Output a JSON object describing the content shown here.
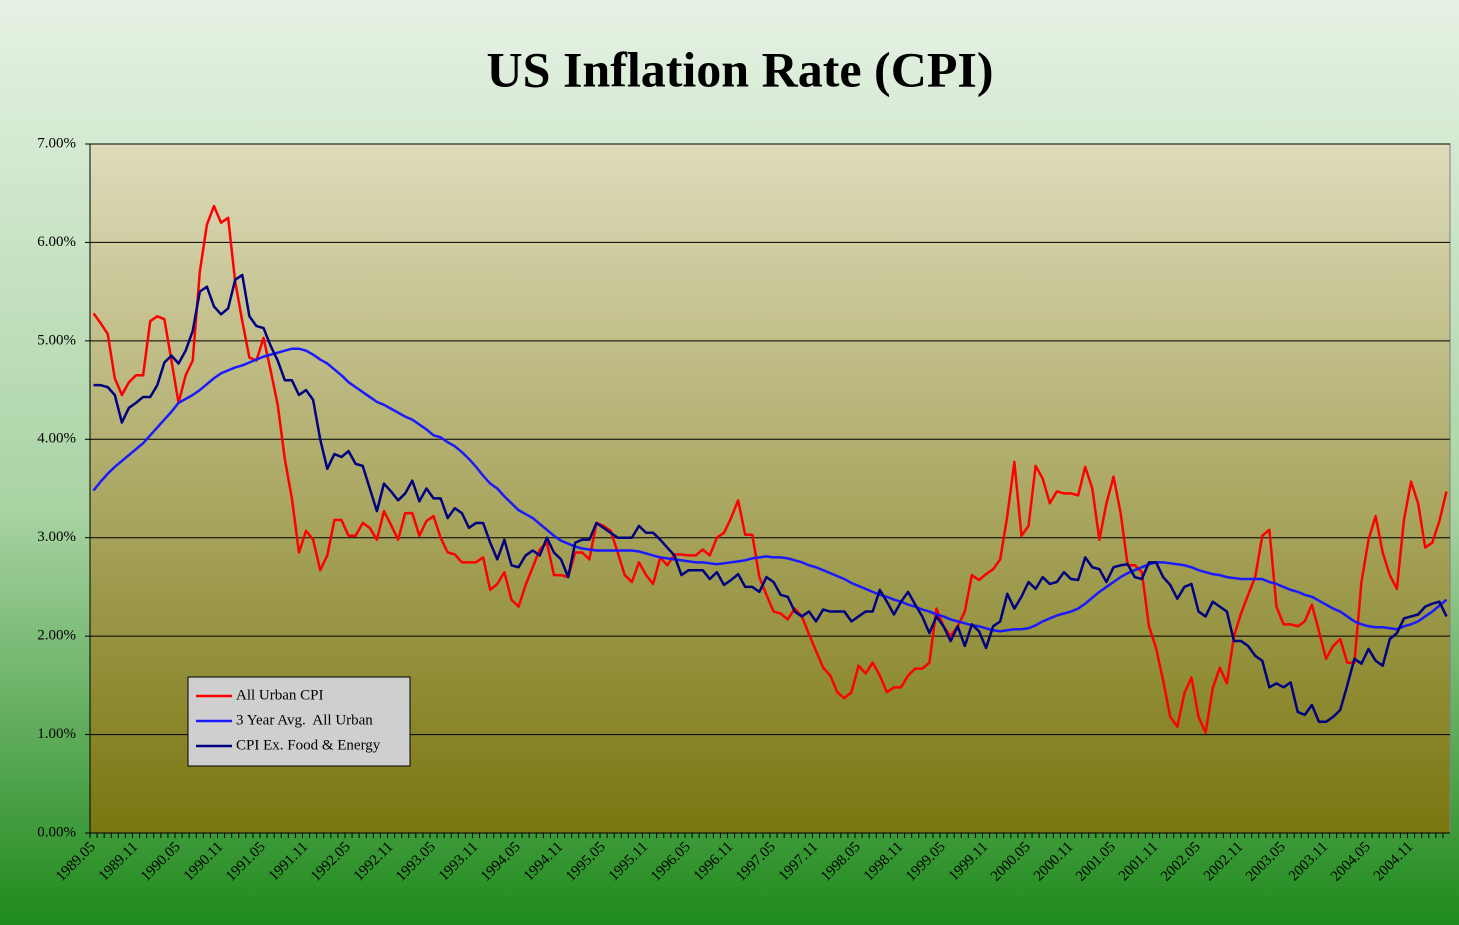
{
  "chart_data": {
    "type": "line",
    "title": "US Inflation Rate (CPI)",
    "categories": [
      "1989.05",
      null,
      null,
      null,
      null,
      null,
      "1989.11",
      null,
      null,
      null,
      null,
      null,
      "1990.05",
      null,
      null,
      null,
      null,
      null,
      "1990.11",
      null,
      null,
      null,
      null,
      null,
      "1991.05",
      null,
      null,
      null,
      null,
      null,
      "1991.11",
      null,
      null,
      null,
      null,
      null,
      "1992.05",
      null,
      null,
      null,
      null,
      null,
      "1992.11",
      null,
      null,
      null,
      null,
      null,
      "1993.05",
      null,
      null,
      null,
      null,
      null,
      "1993.11",
      null,
      null,
      null,
      null,
      null,
      "1994.05",
      null,
      null,
      null,
      null,
      null,
      "1994.11",
      null,
      null,
      null,
      null,
      null,
      "1995.05",
      null,
      null,
      null,
      null,
      null,
      "1995.11",
      null,
      null,
      null,
      null,
      null,
      "1996.05",
      null,
      null,
      null,
      null,
      null,
      "1996.11",
      null,
      null,
      null,
      null,
      null,
      "1997.05",
      null,
      null,
      null,
      null,
      null,
      "1997.11",
      null,
      null,
      null,
      null,
      null,
      "1998.05",
      null,
      null,
      null,
      null,
      null,
      "1998.11",
      null,
      null,
      null,
      null,
      null,
      "1999.05",
      null,
      null,
      null,
      null,
      null,
      "1999.11",
      null,
      null,
      null,
      null,
      null,
      "2000.05",
      null,
      null,
      null,
      null,
      null,
      "2000.11",
      null,
      null,
      null,
      null,
      null,
      "2001.05",
      null,
      null,
      null,
      null,
      null,
      "2001.11",
      null,
      null,
      null,
      null,
      null,
      "2002.05",
      null,
      null,
      null,
      null,
      null,
      "2002.11",
      null,
      null,
      null,
      null,
      null,
      "2003.05",
      null,
      null,
      null,
      null,
      null,
      "2003.11",
      null,
      null,
      null,
      null,
      null,
      "2004.05",
      null,
      null,
      null,
      null,
      null,
      "2004.11",
      null,
      null,
      null,
      null,
      null
    ],
    "series": [
      {
        "name": "All Urban CPI",
        "color": "#ff0000",
        "values": [
          5.28,
          5.18,
          5.07,
          4.62,
          4.45,
          4.58,
          4.65,
          4.65,
          5.2,
          5.25,
          5.22,
          4.8,
          4.37,
          4.65,
          4.8,
          5.7,
          6.18,
          6.37,
          6.2,
          6.25,
          5.6,
          5.2,
          4.83,
          4.8,
          5.03,
          4.7,
          4.35,
          3.8,
          3.4,
          2.85,
          3.07,
          2.98,
          2.67,
          2.82,
          3.18,
          3.18,
          3.02,
          3.02,
          3.15,
          3.1,
          2.98,
          3.27,
          3.13,
          2.98,
          3.25,
          3.25,
          3.02,
          3.17,
          3.22,
          3.0,
          2.85,
          2.83,
          2.75,
          2.75,
          2.75,
          2.8,
          2.47,
          2.53,
          2.65,
          2.37,
          2.3,
          2.52,
          2.7,
          2.88,
          2.95,
          2.62,
          2.62,
          2.6,
          2.85,
          2.85,
          2.78,
          3.15,
          3.12,
          3.07,
          2.85,
          2.62,
          2.55,
          2.75,
          2.62,
          2.53,
          2.8,
          2.72,
          2.83,
          2.83,
          2.82,
          2.82,
          2.88,
          2.82,
          3.0,
          3.05,
          3.2,
          3.38,
          3.03,
          3.03,
          2.6,
          2.42,
          2.25,
          2.23,
          2.17,
          2.28,
          2.2,
          2.02,
          1.85,
          1.68,
          1.6,
          1.43,
          1.37,
          1.43,
          1.7,
          1.62,
          1.73,
          1.6,
          1.43,
          1.48,
          1.48,
          1.6,
          1.67,
          1.67,
          1.73,
          2.28,
          2.1,
          2.0,
          2.1,
          2.25,
          2.62,
          2.57,
          2.63,
          2.68,
          2.78,
          3.22,
          3.77,
          3.02,
          3.12,
          3.73,
          3.6,
          3.35,
          3.47,
          3.45,
          3.45,
          3.43,
          3.72,
          3.5,
          2.98,
          3.35,
          3.62,
          3.25,
          2.72,
          2.72,
          2.65,
          2.1,
          1.88,
          1.55,
          1.18,
          1.08,
          1.42,
          1.58,
          1.18,
          1.02,
          1.47,
          1.68,
          1.52,
          2.0,
          2.23,
          2.42,
          2.6,
          3.02,
          3.08,
          2.3,
          2.12,
          2.12,
          2.1,
          2.15,
          2.32,
          2.05,
          1.77,
          1.9,
          1.97,
          1.73,
          1.73,
          2.55,
          2.98,
          3.22,
          2.85,
          2.62,
          2.48,
          3.18,
          3.57,
          3.35,
          2.9,
          2.95,
          3.17,
          3.47
        ]
      },
      {
        "name": "3 Year Avg.  All Urban",
        "color": "#1a1aff",
        "values": [
          3.48,
          3.57,
          3.65,
          3.72,
          3.78,
          3.84,
          3.9,
          3.96,
          4.04,
          4.12,
          4.2,
          4.28,
          4.37,
          4.41,
          4.45,
          4.5,
          4.56,
          4.62,
          4.67,
          4.7,
          4.73,
          4.75,
          4.78,
          4.81,
          4.84,
          4.86,
          4.88,
          4.9,
          4.92,
          4.92,
          4.9,
          4.86,
          4.81,
          4.77,
          4.71,
          4.65,
          4.58,
          4.53,
          4.48,
          4.43,
          4.38,
          4.35,
          4.31,
          4.27,
          4.23,
          4.2,
          4.15,
          4.1,
          4.04,
          4.02,
          3.97,
          3.93,
          3.87,
          3.8,
          3.72,
          3.63,
          3.55,
          3.5,
          3.42,
          3.35,
          3.28,
          3.24,
          3.2,
          3.14,
          3.08,
          3.02,
          2.97,
          2.94,
          2.91,
          2.89,
          2.88,
          2.87,
          2.87,
          2.87,
          2.87,
          2.87,
          2.87,
          2.86,
          2.84,
          2.82,
          2.8,
          2.79,
          2.78,
          2.77,
          2.76,
          2.75,
          2.75,
          2.74,
          2.73,
          2.74,
          2.75,
          2.76,
          2.77,
          2.79,
          2.8,
          2.81,
          2.8,
          2.8,
          2.79,
          2.77,
          2.75,
          2.72,
          2.7,
          2.67,
          2.64,
          2.61,
          2.58,
          2.54,
          2.51,
          2.48,
          2.45,
          2.42,
          2.4,
          2.37,
          2.35,
          2.32,
          2.3,
          2.27,
          2.25,
          2.22,
          2.2,
          2.17,
          2.15,
          2.13,
          2.11,
          2.1,
          2.08,
          2.06,
          2.05,
          2.06,
          2.07,
          2.07,
          2.08,
          2.11,
          2.15,
          2.18,
          2.21,
          2.23,
          2.25,
          2.28,
          2.33,
          2.39,
          2.45,
          2.5,
          2.55,
          2.6,
          2.64,
          2.67,
          2.7,
          2.73,
          2.75,
          2.75,
          2.74,
          2.73,
          2.72,
          2.7,
          2.67,
          2.65,
          2.63,
          2.62,
          2.6,
          2.59,
          2.58,
          2.58,
          2.58,
          2.58,
          2.55,
          2.53,
          2.5,
          2.47,
          2.45,
          2.42,
          2.4,
          2.36,
          2.32,
          2.28,
          2.25,
          2.2,
          2.15,
          2.12,
          2.1,
          2.09,
          2.09,
          2.08,
          2.07,
          2.1,
          2.12,
          2.15,
          2.2,
          2.25,
          2.31,
          2.37
        ]
      },
      {
        "name": "CPI Ex. Food & Energy",
        "color": "#000080",
        "values": [
          4.55,
          4.55,
          4.53,
          4.45,
          4.17,
          4.32,
          4.37,
          4.43,
          4.43,
          4.55,
          4.78,
          4.85,
          4.77,
          4.9,
          5.1,
          5.5,
          5.55,
          5.35,
          5.27,
          5.33,
          5.62,
          5.67,
          5.25,
          5.15,
          5.13,
          4.95,
          4.8,
          4.6,
          4.6,
          4.45,
          4.5,
          4.4,
          4.0,
          3.7,
          3.85,
          3.82,
          3.88,
          3.75,
          3.73,
          3.5,
          3.27,
          3.55,
          3.47,
          3.38,
          3.45,
          3.58,
          3.37,
          3.5,
          3.4,
          3.4,
          3.2,
          3.3,
          3.25,
          3.1,
          3.15,
          3.15,
          2.95,
          2.78,
          2.98,
          2.72,
          2.7,
          2.82,
          2.87,
          2.82,
          3.0,
          2.85,
          2.78,
          2.6,
          2.95,
          2.98,
          2.98,
          3.15,
          3.1,
          3.05,
          3.0,
          3.0,
          3.0,
          3.12,
          3.05,
          3.05,
          2.98,
          2.9,
          2.82,
          2.62,
          2.67,
          2.67,
          2.67,
          2.58,
          2.65,
          2.52,
          2.57,
          2.63,
          2.5,
          2.5,
          2.45,
          2.6,
          2.55,
          2.42,
          2.4,
          2.25,
          2.2,
          2.25,
          2.15,
          2.27,
          2.25,
          2.25,
          2.25,
          2.15,
          2.2,
          2.25,
          2.25,
          2.47,
          2.35,
          2.22,
          2.35,
          2.45,
          2.32,
          2.2,
          2.03,
          2.2,
          2.1,
          1.95,
          2.1,
          1.9,
          2.12,
          2.05,
          1.88,
          2.1,
          2.15,
          2.43,
          2.28,
          2.4,
          2.55,
          2.48,
          2.6,
          2.53,
          2.55,
          2.65,
          2.58,
          2.57,
          2.8,
          2.7,
          2.68,
          2.55,
          2.7,
          2.72,
          2.73,
          2.6,
          2.58,
          2.75,
          2.75,
          2.6,
          2.52,
          2.38,
          2.5,
          2.53,
          2.25,
          2.2,
          2.35,
          2.3,
          2.25,
          1.95,
          1.95,
          1.9,
          1.8,
          1.75,
          1.48,
          1.52,
          1.48,
          1.53,
          1.23,
          1.2,
          1.3,
          1.13,
          1.13,
          1.18,
          1.25,
          1.5,
          1.77,
          1.72,
          1.87,
          1.75,
          1.7,
          1.97,
          2.03,
          2.18,
          2.2,
          2.22,
          2.3,
          2.33,
          2.35,
          2.2
        ]
      }
    ],
    "ylim": [
      0,
      7
    ],
    "yticks": [
      {
        "value": 0,
        "label": "0.00%"
      },
      {
        "value": 1,
        "label": "1.00%"
      },
      {
        "value": 2,
        "label": "2.00%"
      },
      {
        "value": 3,
        "label": "3.00%"
      },
      {
        "value": 4,
        "label": "4.00%"
      },
      {
        "value": 5,
        "label": "5.00%"
      },
      {
        "value": 6,
        "label": "6.00%"
      },
      {
        "value": 7,
        "label": "7.00%"
      }
    ],
    "grid": true,
    "legend": "lower-left"
  }
}
